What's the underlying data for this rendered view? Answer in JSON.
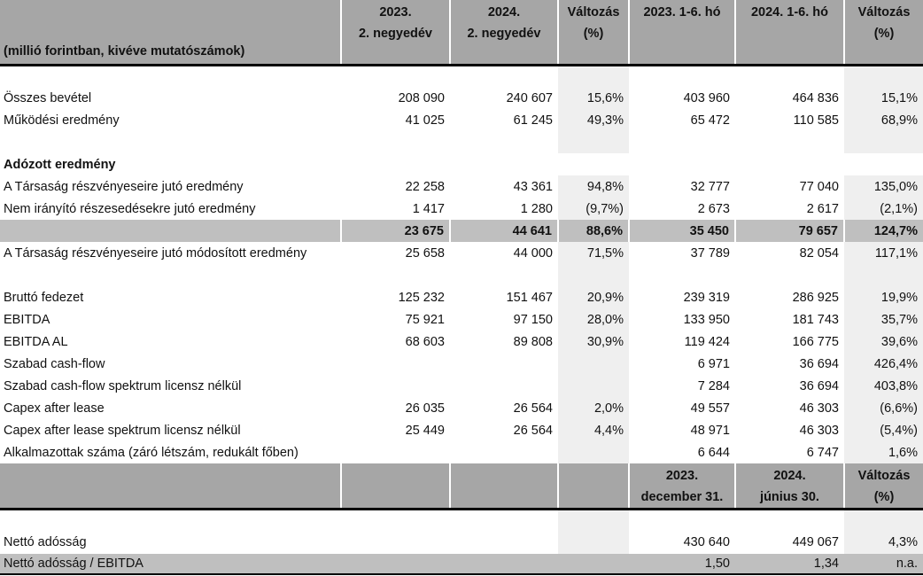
{
  "header": {
    "unit_note": "(millió forintban, kivéve mutatószámok)",
    "cols": [
      [
        "2023.",
        "2. negyedév"
      ],
      [
        "2024.",
        "2. negyedév"
      ],
      [
        "Változás",
        "(%)"
      ],
      [
        "2023. 1-6. hó",
        ""
      ],
      [
        "2024. 1-6. hó",
        ""
      ],
      [
        "Változás",
        "(%)"
      ]
    ]
  },
  "rows": [
    {
      "type": "blank"
    },
    {
      "label": "Összes bevétel",
      "v": [
        "208 090",
        "240 607",
        "15,6%",
        "403 960",
        "464 836",
        "15,1%"
      ]
    },
    {
      "label": "Működési eredmény",
      "v": [
        "41 025",
        "61 245",
        "49,3%",
        "65 472",
        "110 585",
        "68,9%"
      ]
    },
    {
      "type": "blank"
    },
    {
      "type": "section",
      "label": "Adózott eredmény",
      "v": [
        "",
        "",
        "",
        "",
        "",
        ""
      ]
    },
    {
      "label": "A Társaság részvényeseire jutó eredmény",
      "v": [
        "22 258",
        "43 361",
        "94,8%",
        "32 777",
        "77 040",
        "135,0%"
      ]
    },
    {
      "label": "Nem irányító részesedésekre jutó eredmény",
      "v": [
        "1 417",
        "1 280",
        "(9,7%)",
        "2 673",
        "2 617",
        "(2,1%)"
      ]
    },
    {
      "type": "total",
      "label": "",
      "v": [
        "23 675",
        "44 641",
        "88,6%",
        "35 450",
        "79 657",
        "124,7%"
      ]
    },
    {
      "label": "A Társaság részvényeseire jutó módosított eredmény",
      "v": [
        "25 658",
        "44 000",
        "71,5%",
        "37 789",
        "82 054",
        "117,1%"
      ]
    },
    {
      "type": "blank"
    },
    {
      "label": "Bruttó fedezet",
      "v": [
        "125 232",
        "151 467",
        "20,9%",
        "239 319",
        "286 925",
        "19,9%"
      ]
    },
    {
      "label": "EBITDA",
      "v": [
        "75 921",
        "97 150",
        "28,0%",
        "133 950",
        "181 743",
        "35,7%"
      ]
    },
    {
      "label": "EBITDA AL",
      "v": [
        "68 603",
        "89 808",
        "30,9%",
        "119 424",
        "166 775",
        "39,6%"
      ]
    },
    {
      "label": "Szabad cash-flow",
      "v": [
        "",
        "",
        "",
        "6 971",
        "36 694",
        "426,4%"
      ]
    },
    {
      "label": "Szabad cash-flow spektrum licensz nélkül",
      "v": [
        "",
        "",
        "",
        "7 284",
        "36 694",
        "403,8%"
      ]
    },
    {
      "label": "Capex after lease",
      "v": [
        "26 035",
        "26 564",
        "2,0%",
        "49 557",
        "46 303",
        "(6,6%)"
      ]
    },
    {
      "label": "Capex after lease spektrum licensz nélkül",
      "v": [
        "25 449",
        "26 564",
        "4,4%",
        "48 971",
        "46 303",
        "(5,4%)"
      ]
    },
    {
      "label": "Alkalmazottak száma (záró létszám, redukált főben)",
      "v": [
        "",
        "",
        "",
        "6 644",
        "6 747",
        "1,6%"
      ]
    }
  ],
  "header2": {
    "cols": [
      [
        "2023.",
        "december 31."
      ],
      [
        "2024.",
        "június 30."
      ],
      [
        "Változás",
        "(%)"
      ]
    ]
  },
  "rows2": [
    {
      "type": "blank"
    },
    {
      "label": "Nettó adósság",
      "v": [
        "",
        "",
        "",
        "430 640",
        "449 067",
        "4,3%"
      ]
    },
    {
      "type": "last",
      "label": "Nettó adósság / EBITDA",
      "v": [
        "",
        "",
        "",
        "1,50",
        "1,34",
        "n.a."
      ]
    }
  ]
}
